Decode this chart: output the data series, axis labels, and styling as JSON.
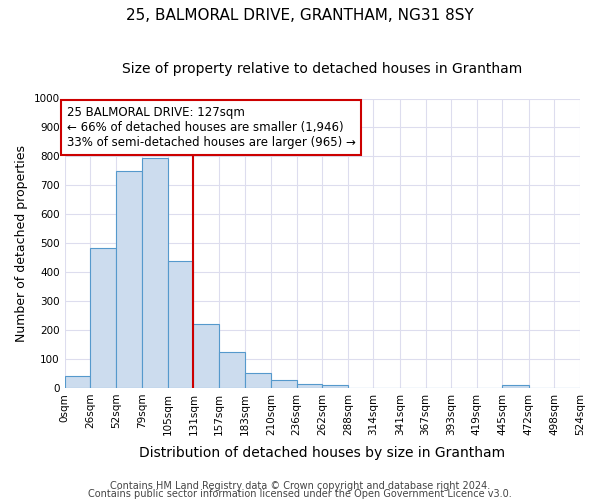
{
  "title": "25, BALMORAL DRIVE, GRANTHAM, NG31 8SY",
  "subtitle": "Size of property relative to detached houses in Grantham",
  "xlabel": "Distribution of detached houses by size in Grantham",
  "ylabel": "Number of detached properties",
  "bin_edges": [
    0,
    26,
    52,
    79,
    105,
    131,
    157,
    183,
    210,
    236,
    262,
    288,
    314,
    341,
    367,
    393,
    419,
    445,
    472,
    498,
    524
  ],
  "bar_heights": [
    42,
    485,
    750,
    795,
    440,
    220,
    125,
    50,
    27,
    15,
    10,
    0,
    0,
    0,
    0,
    0,
    0,
    10,
    0,
    0
  ],
  "bar_color": "#ccdcee",
  "bar_edge_color": "#5599cc",
  "vline_x": 131,
  "vline_color": "#cc0000",
  "annotation_text": "25 BALMORAL DRIVE: 127sqm\n← 66% of detached houses are smaller (1,946)\n33% of semi-detached houses are larger (965) →",
  "annotation_box_edge_color": "#cc0000",
  "annotation_box_fill": "#ffffff",
  "ylim": [
    0,
    1000
  ],
  "yticks": [
    0,
    100,
    200,
    300,
    400,
    500,
    600,
    700,
    800,
    900,
    1000
  ],
  "xtick_labels": [
    "0sqm",
    "26sqm",
    "52sqm",
    "79sqm",
    "105sqm",
    "131sqm",
    "157sqm",
    "183sqm",
    "210sqm",
    "236sqm",
    "262sqm",
    "288sqm",
    "314sqm",
    "341sqm",
    "367sqm",
    "393sqm",
    "419sqm",
    "445sqm",
    "472sqm",
    "498sqm",
    "524sqm"
  ],
  "footer_text1": "Contains HM Land Registry data © Crown copyright and database right 2024.",
  "footer_text2": "Contains public sector information licensed under the Open Government Licence v3.0.",
  "bg_color": "#ffffff",
  "grid_color": "#ddddee",
  "title_fontsize": 11,
  "subtitle_fontsize": 10,
  "tick_fontsize": 7.5,
  "ylabel_fontsize": 9,
  "xlabel_fontsize": 10,
  "footer_fontsize": 7,
  "annotation_fontsize": 8.5
}
